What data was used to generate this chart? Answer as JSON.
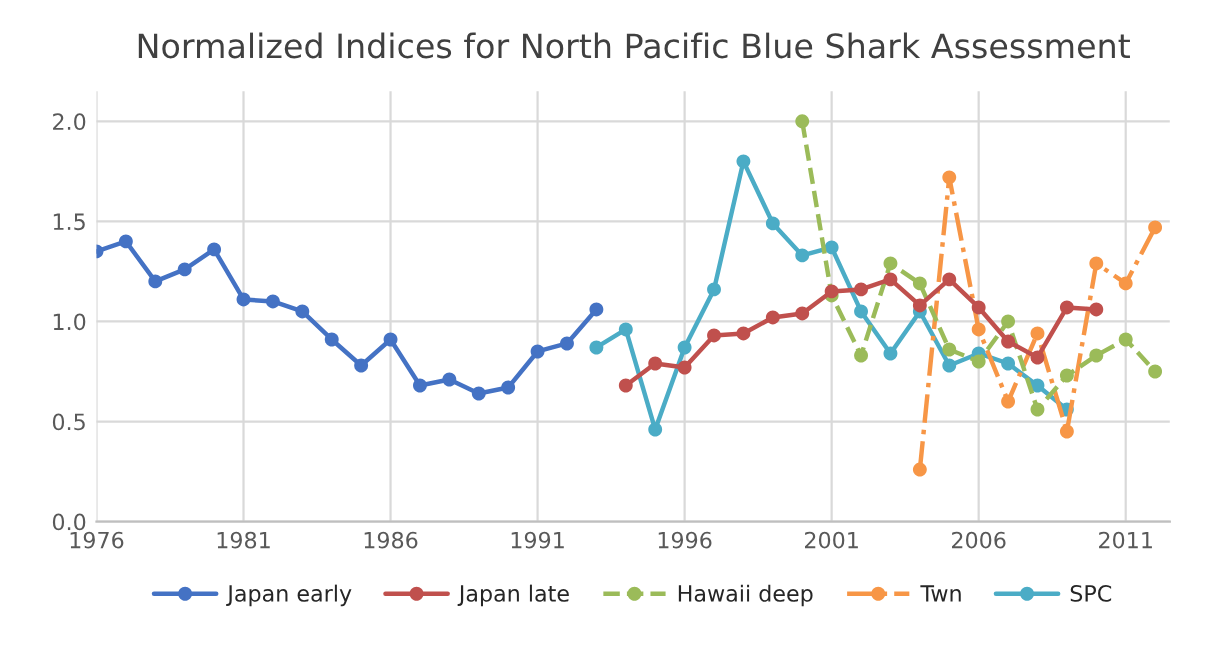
{
  "chart_data": {
    "type": "line",
    "title": "Normalized Indices for North Pacific Blue Shark Assessment",
    "series": [
      {
        "name": "Japan early",
        "color": "#4472c4",
        "line_style": "solid",
        "x": [
          1976,
          1977,
          1978,
          1979,
          1980,
          1981,
          1982,
          1983,
          1984,
          1985,
          1986,
          1987,
          1988,
          1989,
          1990,
          1991,
          1992,
          1993
        ],
        "values": [
          1.35,
          1.4,
          1.2,
          1.26,
          1.36,
          1.11,
          1.1,
          1.05,
          0.91,
          0.78,
          0.91,
          0.68,
          0.71,
          0.64,
          0.67,
          0.85,
          0.89,
          1.06
        ]
      },
      {
        "name": "Japan late",
        "color": "#c0504d",
        "line_style": "solid",
        "x": [
          1994,
          1995,
          1996,
          1997,
          1998,
          1999,
          2000,
          2001,
          2002,
          2003,
          2004,
          2005,
          2006,
          2007,
          2008,
          2009,
          2010
        ],
        "values": [
          0.68,
          0.79,
          0.77,
          0.93,
          0.94,
          1.02,
          1.04,
          1.15,
          1.16,
          1.21,
          1.08,
          1.21,
          1.07,
          0.9,
          0.82,
          1.07,
          1.06
        ]
      },
      {
        "name": "Hawaii deep",
        "color": "#9bbb59",
        "line_style": "dashed",
        "x": [
          2000,
          2001,
          2002,
          2003,
          2004,
          2005,
          2006,
          2007,
          2008,
          2009,
          2010,
          2011,
          2012
        ],
        "values": [
          2.0,
          1.13,
          0.83,
          1.29,
          1.19,
          0.86,
          0.8,
          1.0,
          0.56,
          0.73,
          0.83,
          0.91,
          0.75
        ]
      },
      {
        "name": "Twn",
        "color": "#f79646",
        "line_style": "dashdot",
        "x": [
          2004,
          2005,
          2006,
          2007,
          2008,
          2009,
          2010,
          2011,
          2012
        ],
        "values": [
          0.26,
          1.72,
          0.96,
          0.6,
          0.94,
          0.45,
          1.29,
          1.19,
          1.47
        ]
      },
      {
        "name": "SPC",
        "color": "#4bacc6",
        "line_style": "solid",
        "x": [
          1993,
          1994,
          1995,
          1996,
          1997,
          1998,
          1999,
          2000,
          2001,
          2002,
          2003,
          2004,
          2005,
          2006,
          2007,
          2008,
          2009
        ],
        "values": [
          0.87,
          0.96,
          0.46,
          0.87,
          1.16,
          1.8,
          1.49,
          1.33,
          1.37,
          1.05,
          0.84,
          1.05,
          0.78,
          0.84,
          0.79,
          0.68,
          0.56
        ]
      }
    ],
    "xlim": [
      1976,
      2012.5
    ],
    "xticks": [
      1976,
      1981,
      1986,
      1991,
      1996,
      2001,
      2006,
      2011
    ],
    "ylim": [
      0,
      2.15
    ],
    "yticks": [
      {
        "value": 0,
        "label": "0.0"
      },
      {
        "value": 0.5,
        "label": "0.5"
      },
      {
        "value": 1,
        "label": "1.0"
      },
      {
        "value": 1.5,
        "label": "1.5"
      },
      {
        "value": 2,
        "label": "2.0"
      }
    ],
    "grid": true,
    "legend": "bottom",
    "marker": "circle"
  }
}
